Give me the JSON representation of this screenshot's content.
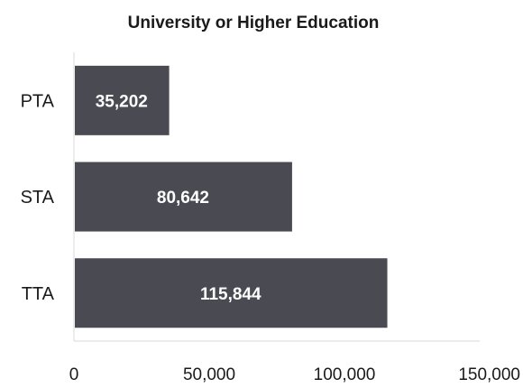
{
  "chart_data": {
    "type": "bar",
    "orientation": "horizontal",
    "title": "University or Higher Education",
    "categories": [
      "PTA",
      "STA",
      "TTA"
    ],
    "values": [
      35202,
      80642,
      115844
    ],
    "data_labels": [
      "35,202",
      "80,642",
      "115,844"
    ],
    "xlim": [
      0,
      150000
    ],
    "x_ticks": [
      0,
      50000,
      100000,
      150000
    ],
    "x_tick_labels": [
      "0",
      "50,000",
      "100,000",
      "150,000"
    ],
    "xlabel": "",
    "ylabel": "",
    "grid": false,
    "legend": "none",
    "colors": {
      "bar": "#4a4a52",
      "text": "#1a1a1a",
      "data_label": "#ffffff",
      "axis": "#d9d9d9"
    }
  }
}
